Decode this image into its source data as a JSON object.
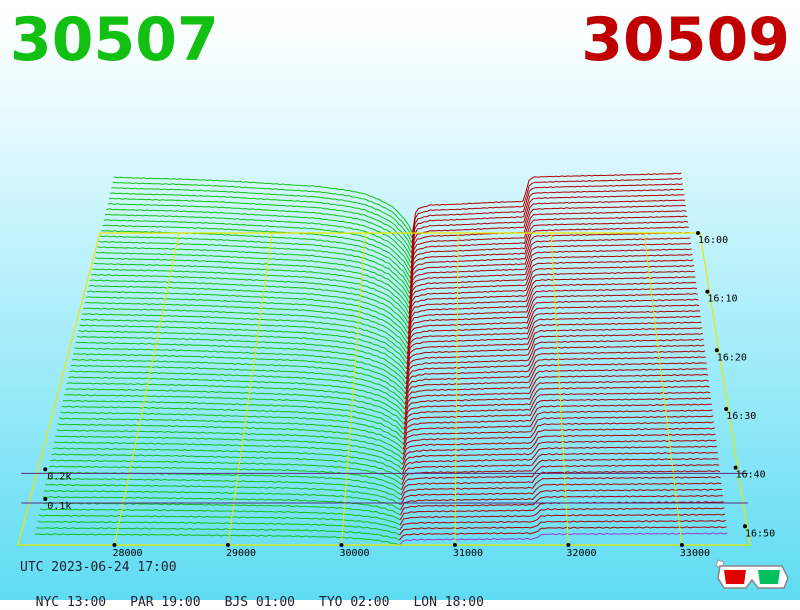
{
  "header": {
    "bid_price": "30507",
    "ask_price": "30509"
  },
  "chart_data": {
    "type": "area",
    "description_kind": "3d-order-book-depth-waterfall",
    "x_axis": {
      "ticks": [
        "28000",
        "29000",
        "30000",
        "31000",
        "32000",
        "33000"
      ],
      "range": [
        27150,
        33600
      ]
    },
    "z_axis": {
      "ticks": [
        "0.1k",
        "0.2k"
      ],
      "range": [
        0,
        0.3
      ]
    },
    "time_axis": {
      "ticks": [
        "16:00",
        "16:10",
        "16:20",
        "16:30",
        "16:40",
        "16:50"
      ]
    },
    "series": [
      {
        "side": "bid",
        "color": "#12c012",
        "profile_x": [
          27300,
          27600,
          28000,
          28500,
          29000,
          29500,
          29800,
          30000,
          30150,
          30300,
          30450,
          30507
        ],
        "profile_depth": [
          0.3,
          0.295,
          0.29,
          0.28,
          0.265,
          0.25,
          0.23,
          0.21,
          0.18,
          0.14,
          0.06,
          0.0
        ]
      },
      {
        "side": "ask",
        "color": "#b00000",
        "profile_x": [
          30509,
          30520,
          30560,
          30700,
          31000,
          31400,
          31700,
          31760,
          31800,
          32100,
          32600,
          33000,
          33400
        ],
        "profile_depth": [
          0.0,
          0.08,
          0.13,
          0.15,
          0.155,
          0.165,
          0.17,
          0.28,
          0.3,
          0.305,
          0.31,
          0.315,
          0.32
        ]
      }
    ],
    "colors": {
      "bid": "#12c012",
      "ask": "#b00000",
      "grid": "#e8e800",
      "baseline": "#9a3ad0"
    }
  },
  "footer": {
    "utc": "UTC 2023-06-24 17:00",
    "zones": [
      "NYC 13:00",
      "PAR 19:00",
      "BJS 01:00",
      "TYO 02:00",
      "LON 18:00"
    ]
  },
  "icons": {
    "glasses": "3d-glasses-icon"
  }
}
